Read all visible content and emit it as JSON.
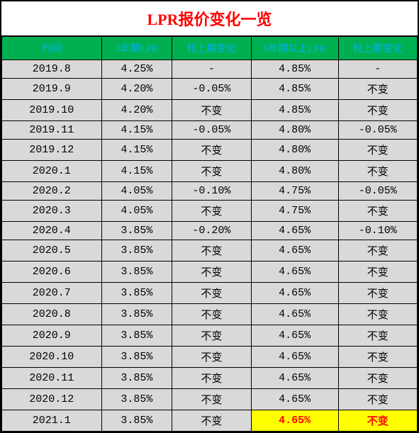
{
  "title": "LPR报价变化一览",
  "title_color": "#ff0000",
  "title_bg": "#ffffff",
  "header_bg": "#00b050",
  "header_color": "#00b0f0",
  "row_bg": "#d9d9d9",
  "highlight_color": "#ff0000",
  "highlight_bg": "#ffff00",
  "border_color": "#000000",
  "columns": [
    "时间",
    "1年期LPR",
    "较上期变化",
    "5年期以上LPR",
    "较上期变化"
  ],
  "rows": [
    {
      "time": "2019.8",
      "lpr1y": "4.25%",
      "chg1y": "-",
      "lpr5y": "4.85%",
      "chg5y": "-"
    },
    {
      "time": "2019.9",
      "lpr1y": "4.20%",
      "chg1y": "-0.05%",
      "lpr5y": "4.85%",
      "chg5y": "不变"
    },
    {
      "time": "2019.10",
      "lpr1y": "4.20%",
      "chg1y": "不变",
      "lpr5y": "4.85%",
      "chg5y": "不变"
    },
    {
      "time": "2019.11",
      "lpr1y": "4.15%",
      "chg1y": "-0.05%",
      "lpr5y": "4.80%",
      "chg5y": "-0.05%"
    },
    {
      "time": "2019.12",
      "lpr1y": "4.15%",
      "chg1y": "不变",
      "lpr5y": "4.80%",
      "chg5y": "不变"
    },
    {
      "time": "2020.1",
      "lpr1y": "4.15%",
      "chg1y": "不变",
      "lpr5y": "4.80%",
      "chg5y": "不变"
    },
    {
      "time": "2020.2",
      "lpr1y": "4.05%",
      "chg1y": "-0.10%",
      "lpr5y": "4.75%",
      "chg5y": "-0.05%"
    },
    {
      "time": "2020.3",
      "lpr1y": "4.05%",
      "chg1y": "不变",
      "lpr5y": "4.75%",
      "chg5y": "不变"
    },
    {
      "time": "2020.4",
      "lpr1y": "3.85%",
      "chg1y": "-0.20%",
      "lpr5y": "4.65%",
      "chg5y": "-0.10%"
    },
    {
      "time": "2020.5",
      "lpr1y": "3.85%",
      "chg1y": "不变",
      "lpr5y": "4.65%",
      "chg5y": "不变"
    },
    {
      "time": "2020.6",
      "lpr1y": "3.85%",
      "chg1y": "不变",
      "lpr5y": "4.65%",
      "chg5y": "不变"
    },
    {
      "time": "2020.7",
      "lpr1y": "3.85%",
      "chg1y": "不变",
      "lpr5y": "4.65%",
      "chg5y": "不变"
    },
    {
      "time": "2020.8",
      "lpr1y": "3.85%",
      "chg1y": "不变",
      "lpr5y": "4.65%",
      "chg5y": "不变"
    },
    {
      "time": "2020.9",
      "lpr1y": "3.85%",
      "chg1y": "不变",
      "lpr5y": "4.65%",
      "chg5y": "不变"
    },
    {
      "time": "2020.10",
      "lpr1y": "3.85%",
      "chg1y": "不变",
      "lpr5y": "4.65%",
      "chg5y": "不变"
    },
    {
      "time": "2020.11",
      "lpr1y": "3.85%",
      "chg1y": "不变",
      "lpr5y": "4.65%",
      "chg5y": "不变"
    },
    {
      "time": "2020.12",
      "lpr1y": "3.85%",
      "chg1y": "不变",
      "lpr5y": "4.65%",
      "chg5y": "不变"
    },
    {
      "time": "2021.1",
      "lpr1y": "3.85%",
      "chg1y": "不变",
      "lpr5y": "4.65%",
      "chg5y": "不变",
      "highlight5y": true
    }
  ]
}
